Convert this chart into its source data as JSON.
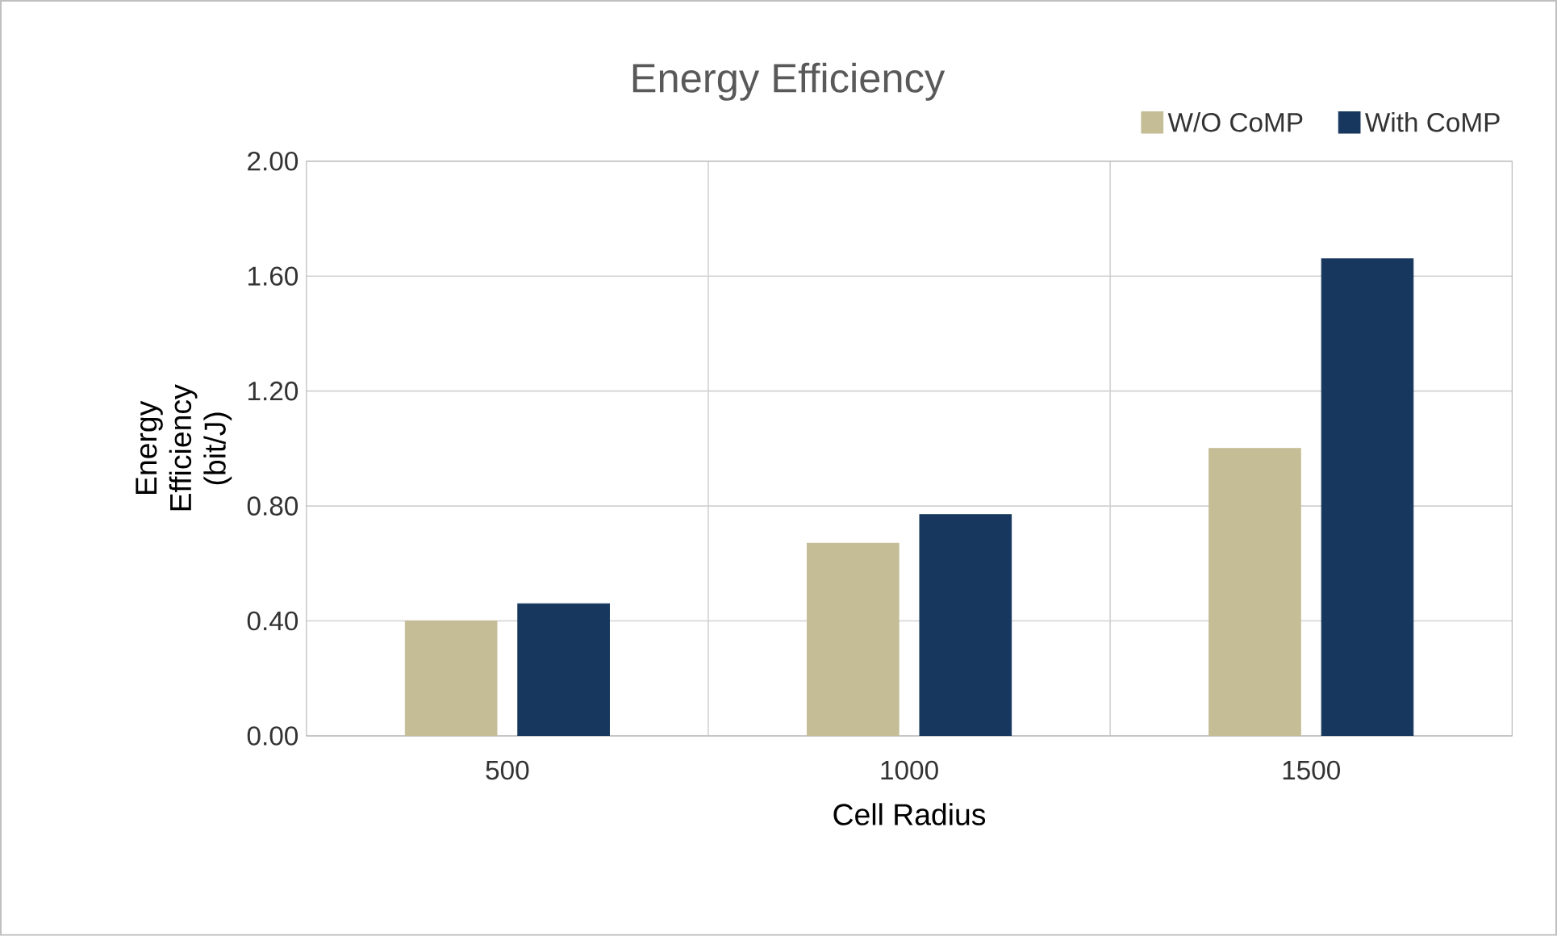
{
  "chart_data": {
    "type": "bar",
    "title": "Energy Efficiency",
    "xlabel": "Cell Radius",
    "ylabel": "Energy Efficiency (bit/J)",
    "categories": [
      "500",
      "1000",
      "1500"
    ],
    "series": [
      {
        "name": "W/O CoMP",
        "color": "#c5bd96",
        "values": [
          0.4,
          0.67,
          1.0
        ]
      },
      {
        "name": "With CoMP",
        "color": "#17375e",
        "values": [
          0.46,
          0.77,
          1.66
        ]
      }
    ],
    "ylim": [
      0,
      2
    ],
    "yticks": [
      {
        "value": 0,
        "label": "0.00"
      },
      {
        "value": 0.4,
        "label": "0.40"
      },
      {
        "value": 0.8,
        "label": "0.80"
      },
      {
        "value": 1.2,
        "label": "1.20"
      },
      {
        "value": 1.6,
        "label": "1.60"
      },
      {
        "value": 2,
        "label": "2.00"
      }
    ],
    "grid": true,
    "legend": "top right"
  }
}
